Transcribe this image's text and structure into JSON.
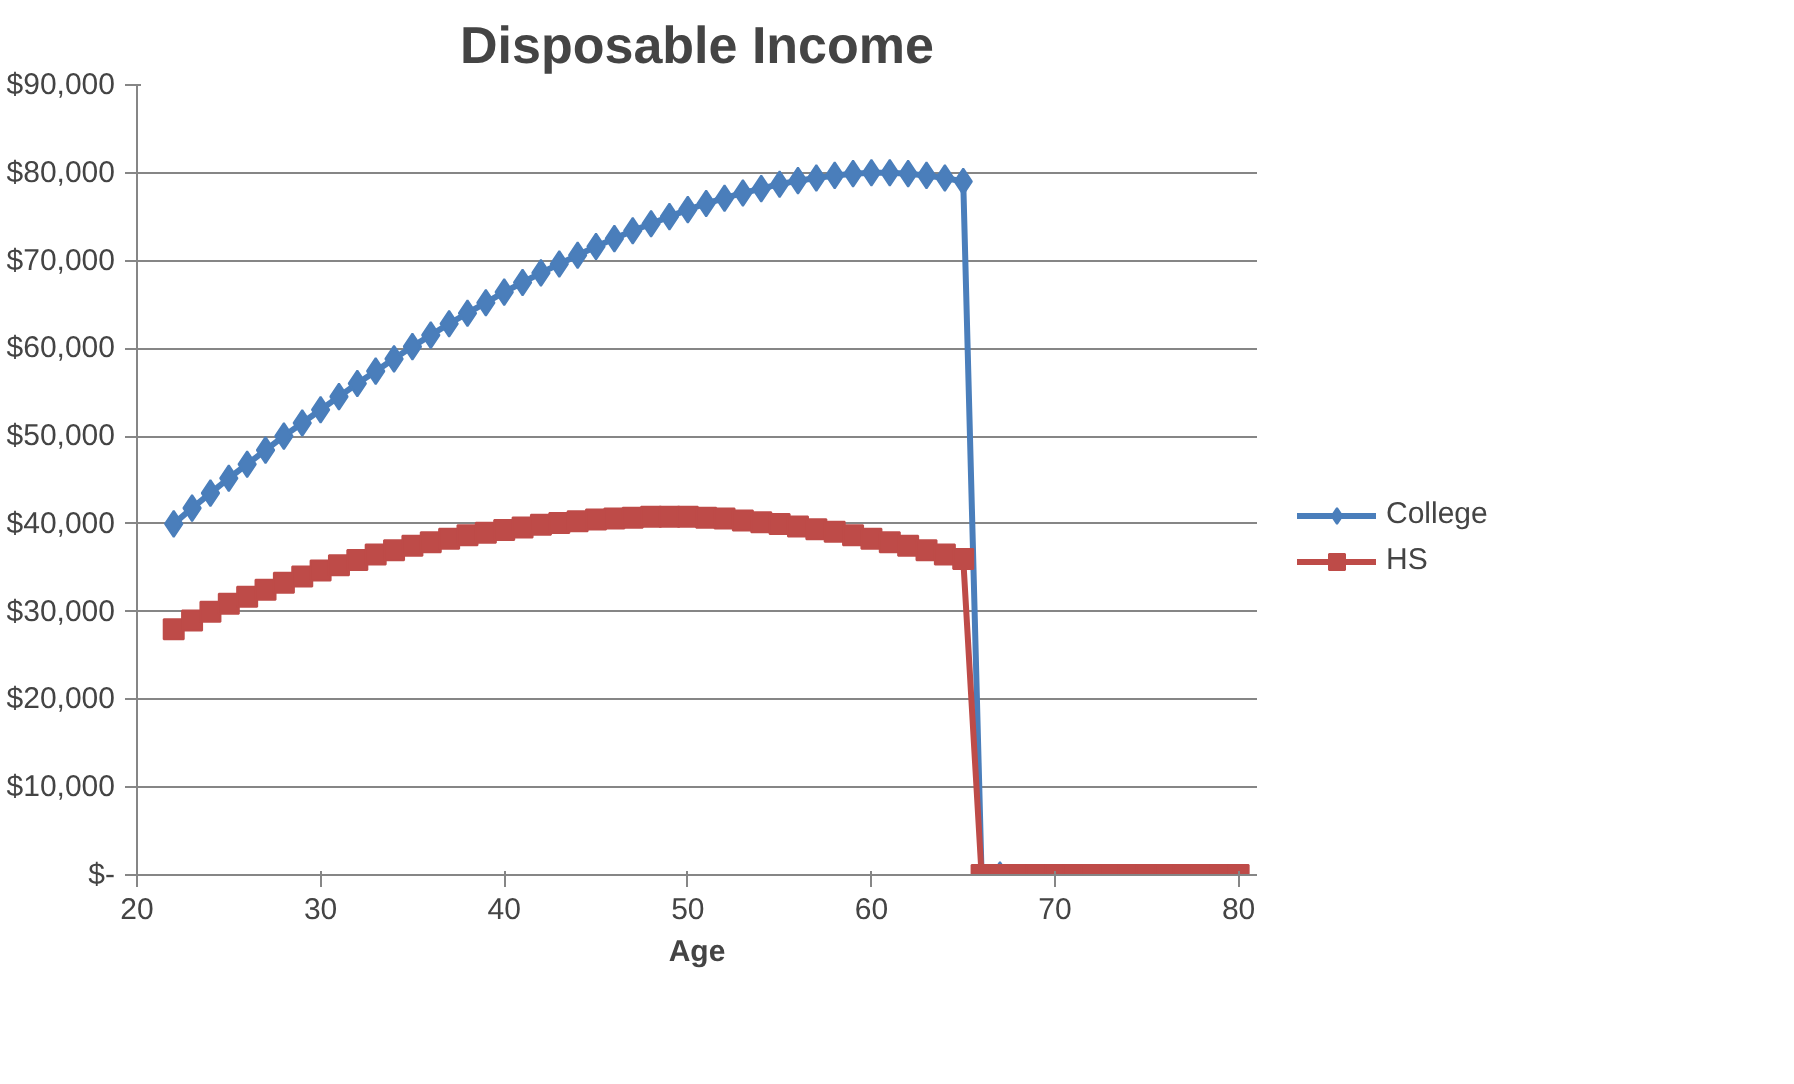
{
  "chart_data": {
    "type": "line",
    "title": "Disposable Income",
    "xlabel": "Age",
    "x": [
      22,
      23,
      24,
      25,
      26,
      27,
      28,
      29,
      30,
      31,
      32,
      33,
      34,
      35,
      36,
      37,
      38,
      39,
      40,
      41,
      42,
      43,
      44,
      45,
      46,
      47,
      48,
      49,
      50,
      51,
      52,
      53,
      54,
      55,
      56,
      57,
      58,
      59,
      60,
      61,
      62,
      63,
      64,
      65,
      66,
      67,
      68,
      69,
      70,
      71,
      72,
      73,
      74,
      75,
      76,
      77,
      78,
      79,
      80
    ],
    "series": [
      {
        "name": "College",
        "color": "#4a7ebb",
        "marker": "diamond",
        "values": [
          40000,
          41800,
          43500,
          45200,
          46800,
          48400,
          50000,
          51500,
          53000,
          54500,
          56000,
          57400,
          58800,
          60200,
          61500,
          62800,
          64000,
          65200,
          66400,
          67500,
          68600,
          69600,
          70600,
          71600,
          72500,
          73400,
          74200,
          75000,
          75800,
          76500,
          77100,
          77700,
          78200,
          78700,
          79100,
          79400,
          79700,
          79900,
          80000,
          80000,
          79900,
          79700,
          79400,
          79000,
          0,
          0,
          null,
          null,
          null,
          null,
          null,
          null,
          null,
          null,
          null,
          null,
          null,
          null,
          null
        ]
      },
      {
        "name": "HS",
        "color": "#be4b48",
        "marker": "square",
        "values": [
          28000,
          29000,
          30000,
          30900,
          31700,
          32500,
          33300,
          34000,
          34700,
          35300,
          35900,
          36500,
          37000,
          37500,
          37900,
          38300,
          38700,
          39000,
          39300,
          39600,
          39900,
          40100,
          40300,
          40500,
          40600,
          40700,
          40800,
          40800,
          40800,
          40700,
          40600,
          40400,
          40200,
          40000,
          39700,
          39400,
          39100,
          38700,
          38300,
          37900,
          37500,
          37000,
          36500,
          36000,
          0,
          0,
          0,
          0,
          0,
          0,
          0,
          0,
          0,
          0,
          0,
          0,
          0,
          0,
          0
        ]
      }
    ],
    "xlim": [
      20,
      81
    ],
    "xticks": [
      20,
      30,
      40,
      50,
      60,
      70,
      80
    ],
    "ylim": [
      0,
      90000
    ],
    "yticks": [
      {
        "value": 0,
        "label": "$-"
      },
      {
        "value": 10000,
        "label": "$10,000"
      },
      {
        "value": 20000,
        "label": "$20,000"
      },
      {
        "value": 30000,
        "label": "$30,000"
      },
      {
        "value": 40000,
        "label": "$40,000"
      },
      {
        "value": 50000,
        "label": "$50,000"
      },
      {
        "value": 60000,
        "label": "$60,000"
      },
      {
        "value": 70000,
        "label": "$70,000"
      },
      {
        "value": 80000,
        "label": "$80,000"
      },
      {
        "value": 90000,
        "label": "$90,000"
      }
    ],
    "grid": "y",
    "legend": "right",
    "line_style": "solid"
  }
}
